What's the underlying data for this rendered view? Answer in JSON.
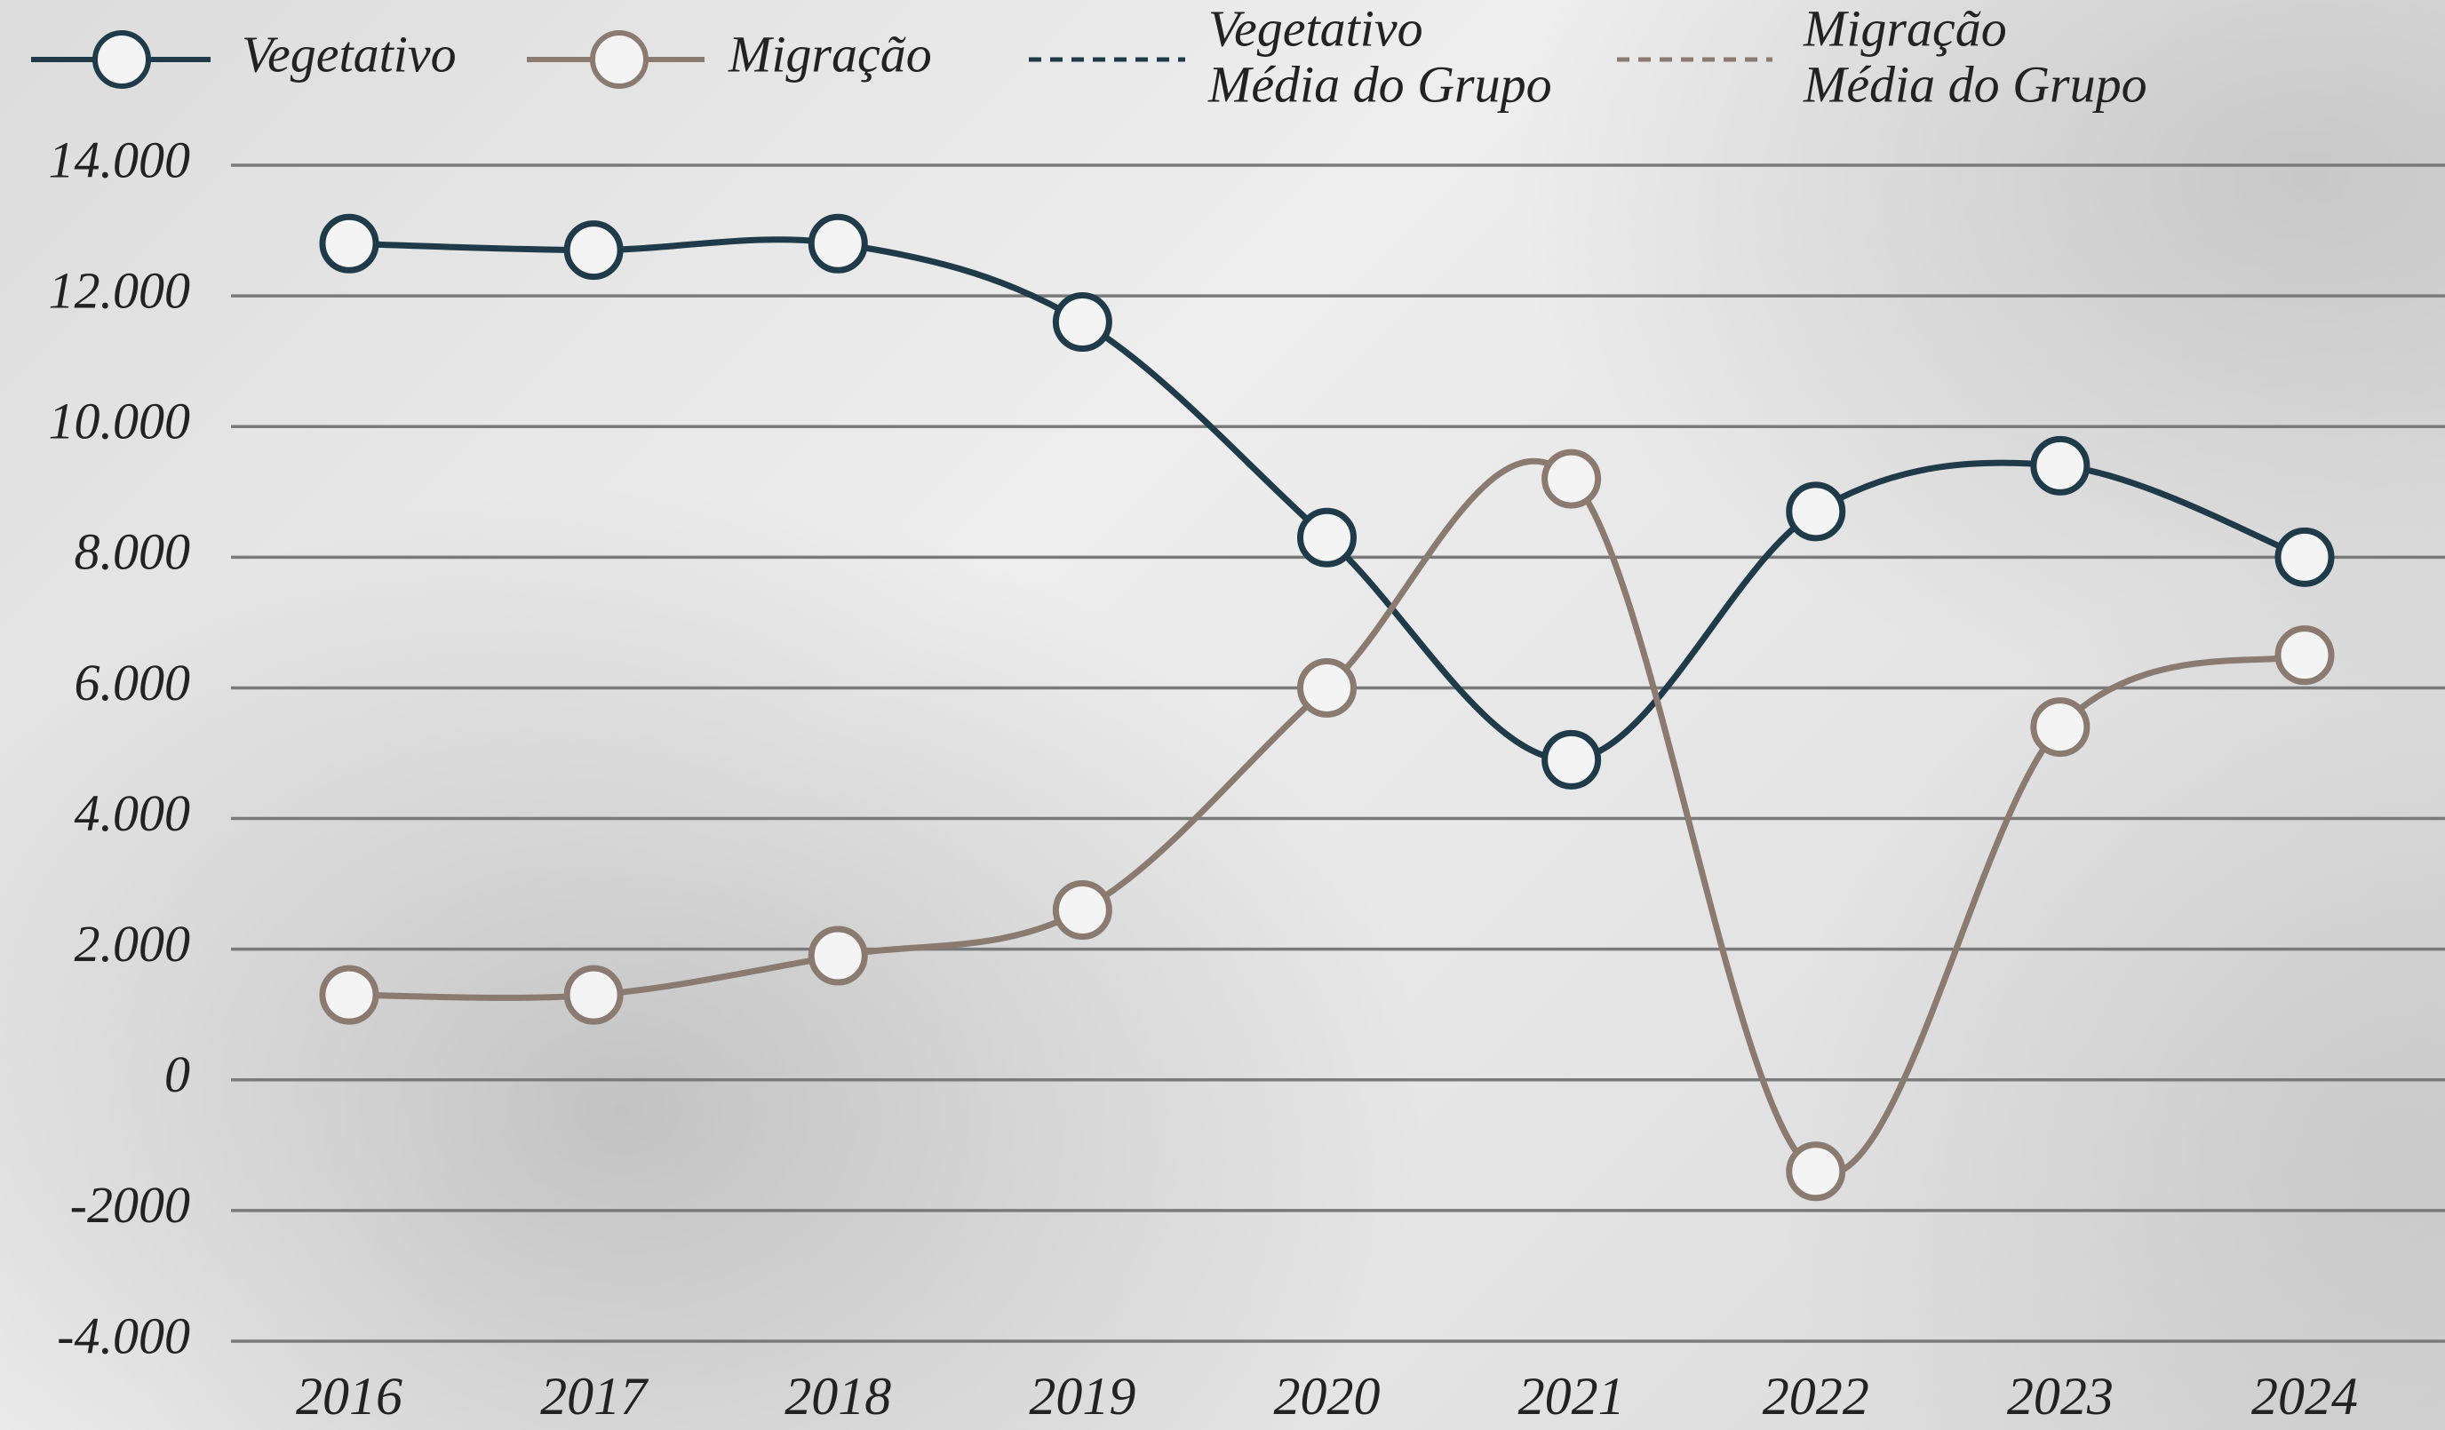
{
  "chart_data": {
    "type": "line",
    "smooth": true,
    "categories": [
      "2016",
      "2017",
      "2018",
      "2019",
      "2020",
      "2021",
      "2022",
      "2023",
      "2024"
    ],
    "series": [
      {
        "name": "Vegetativo",
        "color": "#1f3a48",
        "values": [
          12800,
          12700,
          12800,
          11600,
          8300,
          4900,
          8700,
          9400,
          8000
        ]
      },
      {
        "name": "Migração",
        "color": "#8a7a70",
        "values": [
          1300,
          1300,
          1900,
          2600,
          6000,
          9200,
          -1400,
          5400,
          6500
        ]
      }
    ],
    "group_average_legend": [
      {
        "name_lines": [
          "Vegetativo",
          "Média do Grupo"
        ],
        "color": "#1f3a48",
        "dashed": true
      },
      {
        "name_lines": [
          "Migração",
          "Média do Grupo"
        ],
        "color": "#8a7a70",
        "dashed": true
      }
    ],
    "ylim": [
      -4000,
      14000
    ],
    "yticks": [
      {
        "value": -4000,
        "label": "-4.000"
      },
      {
        "value": -2000,
        "label": "-2000"
      },
      0,
      {
        "value": 2000,
        "label": "2.000"
      },
      {
        "value": 4000,
        "label": "4.000"
      },
      {
        "value": 6000,
        "label": "6.000"
      },
      {
        "value": 8000,
        "label": "8.000"
      },
      {
        "value": 10000,
        "label": "10.000"
      },
      {
        "value": 12000,
        "label": "12.000"
      },
      {
        "value": 14000,
        "label": "14.000"
      }
    ],
    "grid": true,
    "legend": "top"
  }
}
